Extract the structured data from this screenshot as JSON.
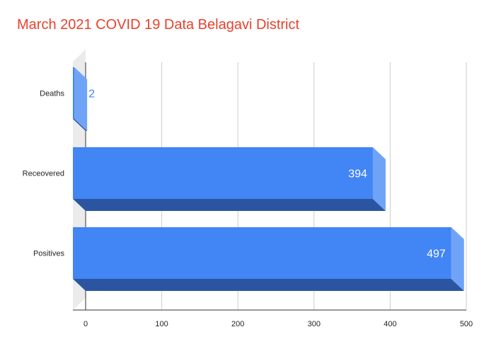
{
  "chart_data": {
    "type": "bar",
    "orientation": "horizontal",
    "style": "3d",
    "title": "March 2021 COVID 19 Data Belagavi District",
    "categories": [
      "Deaths",
      "Receovered",
      "Positives"
    ],
    "values": [
      2,
      394,
      497
    ],
    "xlim": [
      0,
      500
    ],
    "xticks": [
      0,
      100,
      200,
      300,
      400,
      500
    ],
    "grid": true,
    "legend": "none",
    "colors": {
      "bar_front": "#4285f4",
      "bar_bottom": "#2b55a0",
      "bar_side": "#6ea3f7",
      "title": "#e8412c",
      "label_inside": "#ffffff",
      "label_outside": "#4285f4",
      "grid": "#cccccc",
      "back_wall": "#ebebeb"
    }
  }
}
